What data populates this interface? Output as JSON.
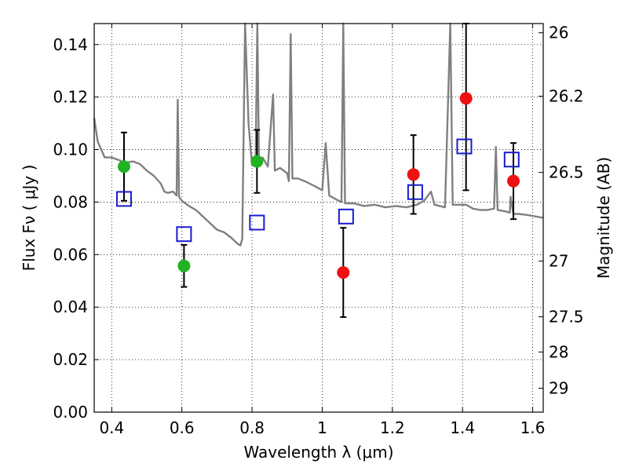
{
  "chart_data": {
    "type": "scatter",
    "xlabel": "Wavelength  λ (μm)",
    "ylabel": "Flux  Fν  ( μJy )",
    "ylabel_right": "Magnitude (AB)",
    "xlim": [
      0.35,
      1.63
    ],
    "ylim": [
      0.0,
      0.148
    ],
    "x_ticks": [
      0.4,
      0.6,
      0.8,
      1.0,
      1.2,
      1.4,
      1.6
    ],
    "x_tick_labels": [
      "0.4",
      "0.6",
      "0.8",
      "1",
      "1.2",
      "1.4",
      "1.6"
    ],
    "y_ticks": [
      0.0,
      0.02,
      0.04,
      0.06,
      0.08,
      0.1,
      0.12,
      0.14
    ],
    "y_tick_labels": [
      "0.00",
      "0.02",
      "0.04",
      "0.06",
      "0.08",
      "0.10",
      "0.12",
      "0.14"
    ],
    "right_ticks": [
      {
        "label": "26",
        "flux": 0.1445
      },
      {
        "label": "26.2",
        "flux": 0.1203
      },
      {
        "label": "26.5",
        "flux": 0.0913
      },
      {
        "label": "27",
        "flux": 0.0575
      },
      {
        "label": "27.5",
        "flux": 0.0363
      },
      {
        "label": "28",
        "flux": 0.0229
      },
      {
        "label": "29",
        "flux": 0.0091
      }
    ],
    "grid": true,
    "grid_style": "dotted",
    "series": [
      {
        "marker": "circle",
        "color": "#22b322",
        "points": [
          {
            "x": 0.435,
            "y": 0.0935,
            "err": 0.013
          },
          {
            "x": 0.606,
            "y": 0.0557,
            "err": 0.008
          },
          {
            "x": 0.814,
            "y": 0.0955,
            "err": 0.012
          }
        ]
      },
      {
        "marker": "circle",
        "color": "#ee1111",
        "points": [
          {
            "x": 1.06,
            "y": 0.0532,
            "err": 0.017
          },
          {
            "x": 1.26,
            "y": 0.0905,
            "err": 0.015
          },
          {
            "x": 1.41,
            "y": 0.1195,
            "err": 0.035
          },
          {
            "x": 1.545,
            "y": 0.088,
            "err": 0.0145
          }
        ]
      },
      {
        "marker": "open-square",
        "color": "#1a1acc",
        "points": [
          {
            "x": 0.435,
            "y": 0.0812
          },
          {
            "x": 0.606,
            "y": 0.0678
          },
          {
            "x": 0.814,
            "y": 0.0722
          },
          {
            "x": 1.068,
            "y": 0.0745
          },
          {
            "x": 1.265,
            "y": 0.0838
          },
          {
            "x": 1.405,
            "y": 0.1012
          },
          {
            "x": 1.54,
            "y": 0.0962
          }
        ]
      }
    ],
    "spectrum": {
      "color": "#808080",
      "points": [
        [
          0.35,
          0.112
        ],
        [
          0.36,
          0.103
        ],
        [
          0.38,
          0.097
        ],
        [
          0.4,
          0.097
        ],
        [
          0.42,
          0.096
        ],
        [
          0.44,
          0.095
        ],
        [
          0.46,
          0.0955
        ],
        [
          0.48,
          0.0945
        ],
        [
          0.5,
          0.092
        ],
        [
          0.52,
          0.09
        ],
        [
          0.54,
          0.087
        ],
        [
          0.55,
          0.084
        ],
        [
          0.56,
          0.0835
        ],
        [
          0.575,
          0.084
        ],
        [
          0.585,
          0.0825
        ],
        [
          0.588,
          0.119
        ],
        [
          0.592,
          0.082
        ],
        [
          0.6,
          0.0805
        ],
        [
          0.62,
          0.0785
        ],
        [
          0.64,
          0.077
        ],
        [
          0.66,
          0.0745
        ],
        [
          0.68,
          0.072
        ],
        [
          0.7,
          0.0695
        ],
        [
          0.72,
          0.0685
        ],
        [
          0.74,
          0.0665
        ],
        [
          0.76,
          0.064
        ],
        [
          0.767,
          0.0635
        ],
        [
          0.772,
          0.066
        ],
        [
          0.78,
          0.148
        ],
        [
          0.79,
          0.11
        ],
        [
          0.8,
          0.094
        ],
        [
          0.81,
          0.095
        ],
        [
          0.815,
          0.148
        ],
        [
          0.82,
          0.094
        ],
        [
          0.83,
          0.097
        ],
        [
          0.845,
          0.0935
        ],
        [
          0.86,
          0.121
        ],
        [
          0.865,
          0.092
        ],
        [
          0.88,
          0.093
        ],
        [
          0.9,
          0.091
        ],
        [
          0.905,
          0.088
        ],
        [
          0.91,
          0.144
        ],
        [
          0.915,
          0.089
        ],
        [
          0.93,
          0.089
        ],
        [
          0.95,
          0.088
        ],
        [
          0.98,
          0.086
        ],
        [
          1.0,
          0.0845
        ],
        [
          1.01,
          0.1025
        ],
        [
          1.02,
          0.0825
        ],
        [
          1.04,
          0.081
        ],
        [
          1.055,
          0.08
        ],
        [
          1.06,
          0.148
        ],
        [
          1.065,
          0.0795
        ],
        [
          1.09,
          0.0795
        ],
        [
          1.12,
          0.0785
        ],
        [
          1.15,
          0.079
        ],
        [
          1.18,
          0.078
        ],
        [
          1.21,
          0.0785
        ],
        [
          1.24,
          0.078
        ],
        [
          1.27,
          0.079
        ],
        [
          1.29,
          0.0805
        ],
        [
          1.31,
          0.084
        ],
        [
          1.32,
          0.079
        ],
        [
          1.35,
          0.078
        ],
        [
          1.365,
          0.148
        ],
        [
          1.372,
          0.079
        ],
        [
          1.39,
          0.079
        ],
        [
          1.41,
          0.079
        ],
        [
          1.43,
          0.0775
        ],
        [
          1.45,
          0.077
        ],
        [
          1.47,
          0.077
        ],
        [
          1.49,
          0.0775
        ],
        [
          1.495,
          0.101
        ],
        [
          1.5,
          0.077
        ],
        [
          1.52,
          0.0765
        ],
        [
          1.535,
          0.076
        ],
        [
          1.537,
          0.082
        ],
        [
          1.545,
          0.0755
        ],
        [
          1.56,
          0.0755
        ],
        [
          1.59,
          0.075
        ],
        [
          1.63,
          0.074
        ]
      ]
    }
  }
}
